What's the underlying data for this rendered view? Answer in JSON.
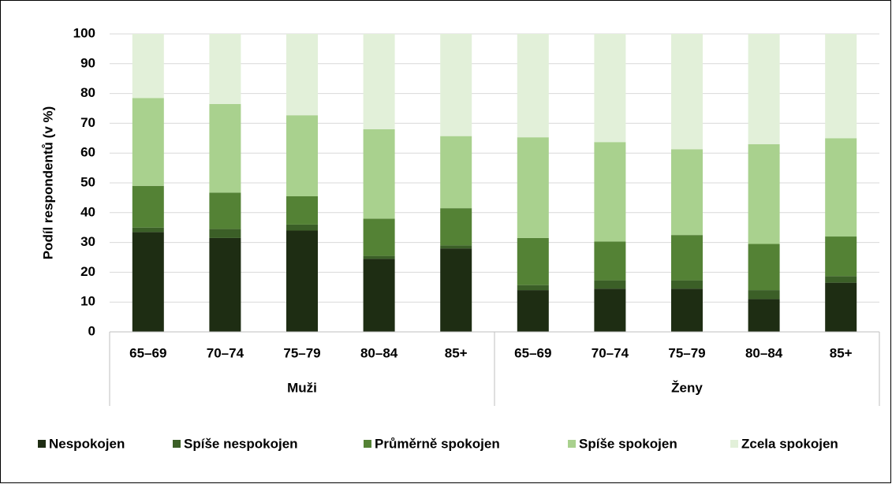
{
  "chart_data": {
    "type": "stacked_bar",
    "y_label": "Podíl respondentů (v %)",
    "groups": [
      "Muži",
      "Ženy"
    ],
    "categories": [
      "65–69",
      "70–74",
      "75–79",
      "80–84",
      "85+",
      "65–69",
      "70–74",
      "75–79",
      "80–84",
      "85+"
    ],
    "series": [
      {
        "name": "Nespokojen",
        "color": "#1e2d13",
        "values": [
          33.5,
          31.5,
          34,
          24.5,
          28,
          14,
          14.5,
          14.5,
          11,
          16.5
        ]
      },
      {
        "name": "Spíše nespokojen",
        "color": "#3b5f27",
        "values": [
          1.5,
          3,
          2,
          1,
          1,
          1.7,
          2.8,
          2.8,
          3,
          2.2
        ]
      },
      {
        "name": "Průměrně spokojen",
        "color": "#548235",
        "values": [
          14,
          12.2,
          9.5,
          12.5,
          12.5,
          15.8,
          13,
          15.2,
          15.5,
          13.3
        ]
      },
      {
        "name": "Spíše spokojen",
        "color": "#a9d18e",
        "values": [
          29.5,
          29.8,
          27.2,
          30,
          24.2,
          33.8,
          33.4,
          28.8,
          33.5,
          33
        ]
      },
      {
        "name": "Zcela spokojen",
        "color": "#e2f0d9",
        "values": [
          21.5,
          23.5,
          27.3,
          32,
          34.3,
          34.7,
          36.3,
          38.7,
          37,
          35
        ]
      }
    ],
    "ylim": [
      0,
      100
    ],
    "yticks": [
      0,
      10,
      20,
      30,
      40,
      50,
      60,
      70,
      80,
      90,
      100
    ],
    "grid": true,
    "legend": "bottom"
  }
}
